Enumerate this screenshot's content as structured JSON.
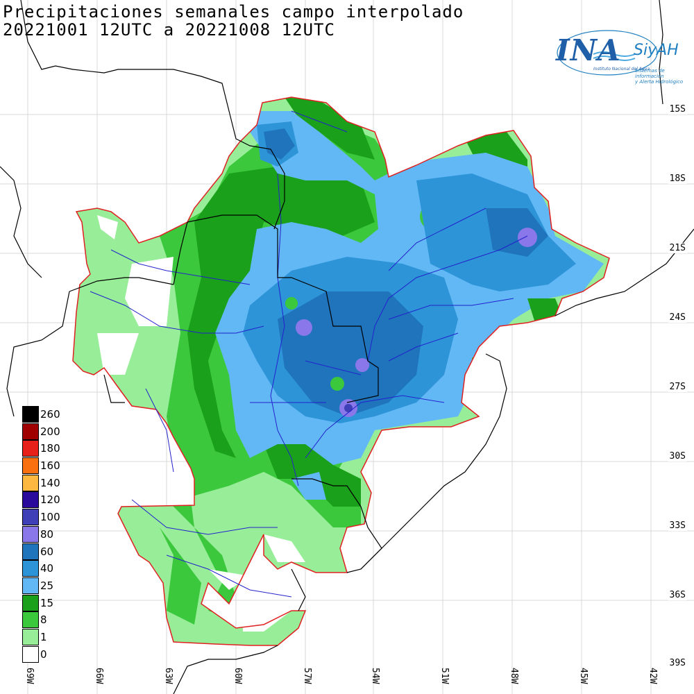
{
  "title": {
    "line1": "Precipitaciones semanales campo interpolado",
    "line2": "20221001 12UTC a 20221008 12UTC"
  },
  "logo": {
    "name": "INA",
    "system": "SiyAH",
    "institute": "Instituto Nacional del Agua",
    "system_desc_1": "Sistemas de información",
    "system_desc_2": "y Alerta Hidrológico"
  },
  "lat_labels": [
    "15S",
    "18S",
    "21S",
    "24S",
    "27S",
    "30S",
    "33S",
    "36S",
    "39S"
  ],
  "lon_labels": [
    "69W",
    "66W",
    "63W",
    "60W",
    "57W",
    "54W",
    "51W",
    "48W",
    "45W",
    "42W"
  ],
  "legend": [
    {
      "label": "260",
      "color": "#000000"
    },
    {
      "label": "200",
      "color": "#a00000"
    },
    {
      "label": "180",
      "color": "#e8201a"
    },
    {
      "label": "160",
      "color": "#f87010"
    },
    {
      "label": "140",
      "color": "#fcb840"
    },
    {
      "label": "120",
      "color": "#2a0a9c"
    },
    {
      "label": "100",
      "color": "#3f3fb8"
    },
    {
      "label": "80",
      "color": "#8a78ea"
    },
    {
      "label": "60",
      "color": "#1f74bc"
    },
    {
      "label": "40",
      "color": "#2e94d8"
    },
    {
      "label": "25",
      "color": "#62b8f4"
    },
    {
      "label": "15",
      "color": "#1aa01a"
    },
    {
      "label": "8",
      "color": "#3cc83c"
    },
    {
      "label": "1",
      "color": "#98ee98"
    },
    {
      "label": "0",
      "color": "#ffffff"
    }
  ]
}
